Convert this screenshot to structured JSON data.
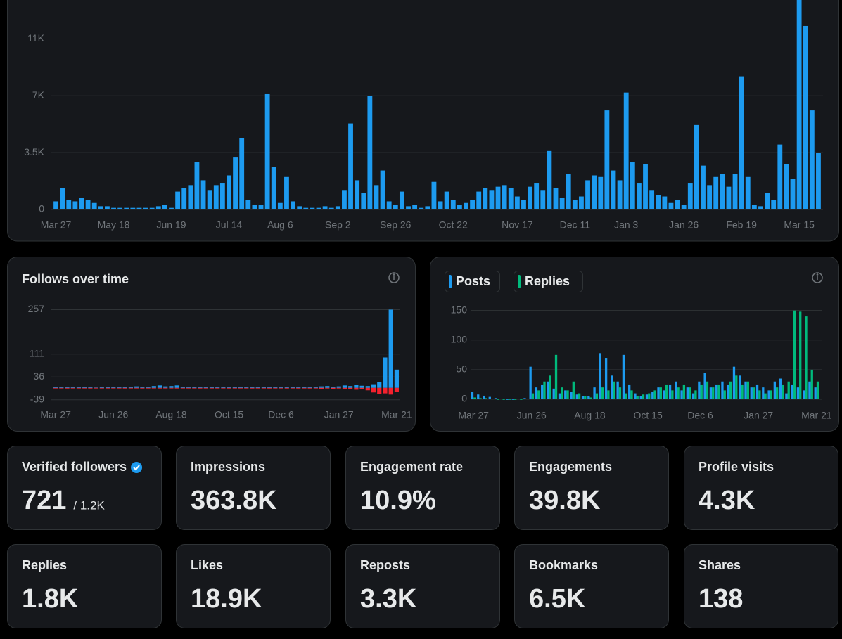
{
  "chart_data": [
    {
      "type": "bar",
      "barmode": "overlay",
      "color": "#1d9bf0",
      "grid": true,
      "categories": [
        "Mar 27",
        null,
        null,
        null,
        null,
        null,
        null,
        null,
        null,
        "May 18",
        null,
        null,
        null,
        null,
        null,
        null,
        null,
        null,
        "Jun 19",
        null,
        null,
        null,
        null,
        null,
        null,
        null,
        null,
        "Jul 14",
        null,
        null,
        null,
        null,
        null,
        null,
        null,
        "Aug 6",
        null,
        null,
        null,
        null,
        null,
        null,
        null,
        null,
        "Sep 2",
        null,
        null,
        null,
        null,
        null,
        null,
        null,
        null,
        "Sep 26",
        null,
        null,
        null,
        null,
        null,
        null,
        null,
        null,
        "Oct 22",
        null,
        null,
        null,
        null,
        null,
        null,
        null,
        null,
        null,
        "Nov 17",
        null,
        null,
        null,
        null,
        null,
        null,
        null,
        null,
        "Dec 11",
        null,
        null,
        null,
        null,
        null,
        null,
        null,
        "Jan 3",
        null,
        null,
        null,
        null,
        null,
        null,
        null,
        null,
        "Jan 26",
        null,
        null,
        null,
        null,
        null,
        null,
        null,
        null,
        "Feb 19",
        null,
        null,
        null,
        null,
        null,
        null,
        null,
        null,
        "Mar 15",
        null,
        null,
        null
      ],
      "series": [
        {
          "color": "#1d9bf0",
          "values": [
            500,
            1300,
            600,
            500,
            700,
            600,
            400,
            200,
            200,
            100,
            100,
            100,
            100,
            100,
            100,
            100,
            200,
            300,
            100,
            1100,
            1300,
            1500,
            2900,
            1800,
            1200,
            1500,
            1600,
            2100,
            3200,
            4400,
            600,
            300,
            300,
            7100,
            2600,
            400,
            2000,
            500,
            200,
            100,
            100,
            100,
            200,
            100,
            200,
            1200,
            5300,
            1800,
            1000,
            7000,
            1500,
            2400,
            500,
            300,
            1100,
            200,
            300,
            100,
            200,
            1700,
            500,
            1100,
            600,
            300,
            400,
            600,
            1100,
            1300,
            1200,
            1400,
            1500,
            1300,
            800,
            600,
            1400,
            1600,
            1200,
            3600,
            1300,
            700,
            2200,
            600,
            800,
            1800,
            2100,
            2000,
            6100,
            2400,
            1800,
            7200,
            2900,
            1600,
            2800,
            1200,
            900,
            800,
            400,
            600,
            300,
            1600,
            5200,
            2700,
            1500,
            2000,
            2200,
            1400,
            2200,
            8200,
            2000,
            300,
            200,
            1000,
            600,
            4000,
            2800,
            1900,
            13000,
            11300,
            6100,
            3500
          ]
        }
      ],
      "ylim": [
        0,
        12900
      ],
      "yticks": [
        0,
        {
          "value": 3500,
          "label": "3.5K"
        },
        {
          "value": 7000,
          "label": "7K"
        },
        {
          "value": 10500,
          "label": "11K"
        }
      ]
    },
    {
      "type": "bar",
      "barmode": "overlay",
      "title": "Follows over time",
      "grid": true,
      "categories": [
        "Mar 27",
        null,
        null,
        null,
        null,
        null,
        null,
        null,
        null,
        null,
        "Jun 26",
        null,
        null,
        null,
        null,
        null,
        null,
        null,
        null,
        null,
        "Aug 18",
        null,
        null,
        null,
        null,
        null,
        null,
        null,
        null,
        null,
        "Oct 15",
        null,
        null,
        null,
        null,
        null,
        null,
        null,
        null,
        "Dec 6",
        null,
        null,
        null,
        null,
        null,
        null,
        null,
        null,
        null,
        "Jan 27",
        null,
        null,
        null,
        null,
        null,
        null,
        null,
        null,
        null,
        "Mar 21"
      ],
      "series": [
        {
          "color": "#1d9bf0",
          "values": [
            3,
            2,
            3,
            2,
            2,
            3,
            2,
            1,
            2,
            2,
            3,
            2,
            3,
            4,
            5,
            4,
            3,
            6,
            8,
            5,
            6,
            8,
            4,
            3,
            4,
            3,
            2,
            3,
            4,
            3,
            3,
            2,
            3,
            3,
            2,
            3,
            2,
            3,
            3,
            2,
            3,
            4,
            3,
            2,
            4,
            3,
            5,
            6,
            4,
            5,
            8,
            6,
            10,
            7,
            6,
            12,
            20,
            100,
            257,
            60
          ]
        },
        {
          "color": "#f4212e",
          "values": [
            -1,
            -1,
            -2,
            -1,
            -1,
            -1,
            -2,
            -1,
            -1,
            -1,
            -1,
            -1,
            -2,
            -1,
            -1,
            -2,
            -1,
            -1,
            -2,
            -1,
            -1,
            -2,
            -1,
            -1,
            -1,
            -2,
            -1,
            -1,
            -1,
            -1,
            -2,
            -1,
            -1,
            -1,
            -2,
            -1,
            -1,
            -2,
            -1,
            -1,
            -2,
            -1,
            -2,
            -1,
            -2,
            -1,
            -3,
            -2,
            -3,
            -2,
            -4,
            -5,
            -6,
            -5,
            -8,
            -15,
            -20,
            -18,
            -22,
            -12
          ]
        }
      ],
      "ylim": [
        -42,
        265
      ],
      "yticks": [
        -39,
        36,
        111,
        257
      ]
    },
    {
      "type": "bar",
      "barmode": "group",
      "grid": true,
      "categories": [
        "Mar 27",
        null,
        null,
        null,
        null,
        null,
        null,
        null,
        null,
        null,
        "Jun 26",
        null,
        null,
        null,
        null,
        null,
        null,
        null,
        null,
        null,
        "Aug 18",
        null,
        null,
        null,
        null,
        null,
        null,
        null,
        null,
        null,
        "Oct 15",
        null,
        null,
        null,
        null,
        null,
        null,
        null,
        null,
        "Dec 6",
        null,
        null,
        null,
        null,
        null,
        null,
        null,
        null,
        null,
        "Jan 27",
        null,
        null,
        null,
        null,
        null,
        null,
        null,
        null,
        null,
        "Mar 21"
      ],
      "series": [
        {
          "name": "Posts",
          "color": "#1d9bf0",
          "values": [
            12,
            8,
            6,
            4,
            2,
            1,
            0,
            0,
            1,
            2,
            55,
            20,
            25,
            30,
            18,
            10,
            15,
            12,
            8,
            5,
            5,
            20,
            78,
            70,
            40,
            30,
            75,
            25,
            10,
            5,
            8,
            12,
            20,
            15,
            25,
            30,
            15,
            20,
            10,
            30,
            45,
            20,
            25,
            30,
            25,
            55,
            40,
            30,
            20,
            25,
            20,
            15,
            30,
            35,
            10,
            25,
            20,
            15,
            30,
            20
          ]
        },
        {
          "name": "Replies",
          "color": "#00ba7c",
          "values": [
            3,
            2,
            2,
            1,
            0,
            0,
            0,
            0,
            0,
            1,
            10,
            15,
            30,
            40,
            75,
            20,
            15,
            30,
            10,
            5,
            3,
            10,
            20,
            15,
            30,
            20,
            10,
            15,
            5,
            8,
            10,
            15,
            20,
            25,
            15,
            20,
            25,
            20,
            15,
            25,
            30,
            20,
            25,
            15,
            30,
            40,
            25,
            30,
            20,
            15,
            10,
            15,
            20,
            25,
            30,
            150,
            148,
            140,
            50,
            30
          ]
        }
      ],
      "ylim": [
        0,
        152
      ],
      "yticks": [
        0,
        50,
        100,
        150
      ]
    }
  ],
  "cards": [
    {
      "label": "Verified followers",
      "value": "721",
      "total": "/ 1.2K"
    },
    {
      "label": "Impressions",
      "value": "363.8K"
    },
    {
      "label": "Engagement rate",
      "value": "10.9%"
    },
    {
      "label": "Engagements",
      "value": "39.8K"
    },
    {
      "label": "Profile visits",
      "value": "4.3K"
    },
    {
      "label": "Replies",
      "value": "1.8K"
    },
    {
      "label": "Likes",
      "value": "18.9K"
    },
    {
      "label": "Reposts",
      "value": "3.3K"
    },
    {
      "label": "Bookmarks",
      "value": "6.5K"
    },
    {
      "label": "Shares",
      "value": "138"
    }
  ]
}
